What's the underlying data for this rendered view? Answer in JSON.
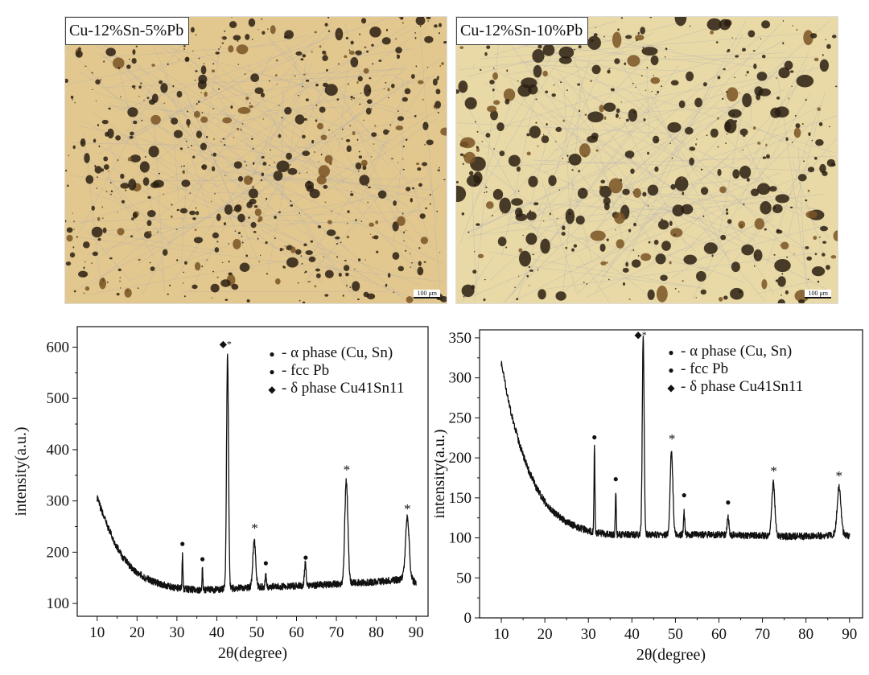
{
  "micrographs": [
    {
      "label": "Cu-12%Sn-5%Pb",
      "scale_bar": "100 μm",
      "base_color": "#e2c88f"
    },
    {
      "label": "Cu-12%Sn-10%Pb",
      "scale_bar": "100 μm",
      "base_color": "#e8d9a6"
    }
  ],
  "chart_data": [
    {
      "type": "line",
      "title": "",
      "xlabel": "2θ(degree)",
      "ylabel": "intensity(a.u.)",
      "xlim": [
        5,
        93
      ],
      "ylim": [
        75,
        640
      ],
      "xticks": [
        10,
        20,
        30,
        40,
        50,
        60,
        70,
        80,
        90
      ],
      "yticks": [
        100,
        200,
        300,
        400,
        500,
        600
      ],
      "grid": false,
      "legend_position": "top-right",
      "legend": [
        {
          "marker": "*",
          "label": "- α phase (Cu, Sn)"
        },
        {
          "marker": "●",
          "label": "- fcc Pb"
        },
        {
          "marker": "◆",
          "label": "- δ phase Cu41Sn11"
        }
      ],
      "series": [
        {
          "color": "#111111",
          "baseline": [
            [
              10,
              305
            ],
            [
              12,
              262
            ],
            [
              14,
              225
            ],
            [
              16,
              195
            ],
            [
              18,
              175
            ],
            [
              20,
              160
            ],
            [
              22,
              150
            ],
            [
              25,
              140
            ],
            [
              28,
              133
            ],
            [
              32,
              128
            ],
            [
              36,
              126
            ],
            [
              40,
              127
            ],
            [
              45,
              130
            ],
            [
              50,
              132
            ],
            [
              55,
              133
            ],
            [
              60,
              134
            ],
            [
              65,
              136
            ],
            [
              70,
              138
            ],
            [
              75,
              140
            ],
            [
              80,
              142
            ],
            [
              85,
              146
            ],
            [
              88,
              150
            ],
            [
              90,
              140
            ]
          ],
          "peaks": [
            {
              "x": 31.4,
              "height": 65,
              "width": 0.15
            },
            {
              "x": 36.4,
              "height": 42,
              "width": 0.15
            },
            {
              "x": 42.7,
              "height": 455,
              "width": 0.35
            },
            {
              "x": 49.4,
              "height": 90,
              "width": 0.5
            },
            {
              "x": 52.3,
              "height": 25,
              "width": 0.2
            },
            {
              "x": 62.2,
              "height": 45,
              "width": 0.3
            },
            {
              "x": 72.5,
              "height": 200,
              "width": 0.55
            },
            {
              "x": 87.8,
              "height": 118,
              "width": 0.65
            }
          ]
        }
      ],
      "annotations": [
        {
          "x": 31.4,
          "y": 211,
          "text": "●"
        },
        {
          "x": 36.4,
          "y": 181,
          "text": "●"
        },
        {
          "x": 42.2,
          "y": 600,
          "text": "◆*"
        },
        {
          "x": 49.5,
          "y": 238,
          "text": "*"
        },
        {
          "x": 52.3,
          "y": 173,
          "text": "●"
        },
        {
          "x": 62.3,
          "y": 184,
          "text": "●"
        },
        {
          "x": 72.6,
          "y": 352,
          "text": "*"
        },
        {
          "x": 87.8,
          "y": 276,
          "text": "*"
        }
      ]
    },
    {
      "type": "line",
      "title": "",
      "xlabel": "2θ(degree)",
      "ylabel": "intensity(a.u.)",
      "xlim": [
        5,
        93
      ],
      "ylim": [
        0,
        360
      ],
      "xticks": [
        10,
        20,
        30,
        40,
        50,
        60,
        70,
        80,
        90
      ],
      "yticks": [
        0,
        50,
        100,
        150,
        200,
        250,
        300,
        350
      ],
      "grid": false,
      "legend_position": "top-right",
      "legend": [
        {
          "marker": "*",
          "label": "- α phase (Cu, Sn)"
        },
        {
          "marker": "●",
          "label": "- fcc Pb"
        },
        {
          "marker": "◆",
          "label": "- δ phase Cu41Sn11"
        }
      ],
      "series": [
        {
          "color": "#111111",
          "baseline": [
            [
              10,
              318
            ],
            [
              12,
              262
            ],
            [
              14,
              220
            ],
            [
              16,
              188
            ],
            [
              18,
              163
            ],
            [
              20,
              145
            ],
            [
              22,
              132
            ],
            [
              25,
              120
            ],
            [
              28,
              112
            ],
            [
              32,
              106
            ],
            [
              36,
              104
            ],
            [
              40,
              104
            ],
            [
              45,
              104
            ],
            [
              50,
              104
            ],
            [
              55,
              104
            ],
            [
              60,
              104
            ],
            [
              65,
              103
            ],
            [
              70,
              103
            ],
            [
              75,
              102
            ],
            [
              80,
              102
            ],
            [
              85,
              103
            ],
            [
              88,
              105
            ],
            [
              90,
              102
            ]
          ],
          "peaks": [
            {
              "x": 31.4,
              "height": 108,
              "width": 0.15
            },
            {
              "x": 36.3,
              "height": 56,
              "width": 0.15
            },
            {
              "x": 42.6,
              "height": 248,
              "width": 0.3
            },
            {
              "x": 49.1,
              "height": 103,
              "width": 0.45
            },
            {
              "x": 52.0,
              "height": 28,
              "width": 0.2
            },
            {
              "x": 62.1,
              "height": 22,
              "width": 0.3
            },
            {
              "x": 72.5,
              "height": 66,
              "width": 0.5
            },
            {
              "x": 87.6,
              "height": 58,
              "width": 0.6
            }
          ]
        }
      ],
      "annotations": [
        {
          "x": 31.4,
          "y": 222,
          "text": "●"
        },
        {
          "x": 36.3,
          "y": 170,
          "text": "●"
        },
        {
          "x": 42.0,
          "y": 350,
          "text": "◆*"
        },
        {
          "x": 49.2,
          "y": 218,
          "text": "*"
        },
        {
          "x": 52.0,
          "y": 150,
          "text": "●"
        },
        {
          "x": 62.1,
          "y": 141,
          "text": "●"
        },
        {
          "x": 72.6,
          "y": 178,
          "text": "*"
        },
        {
          "x": 87.6,
          "y": 172,
          "text": "*"
        }
      ]
    }
  ]
}
